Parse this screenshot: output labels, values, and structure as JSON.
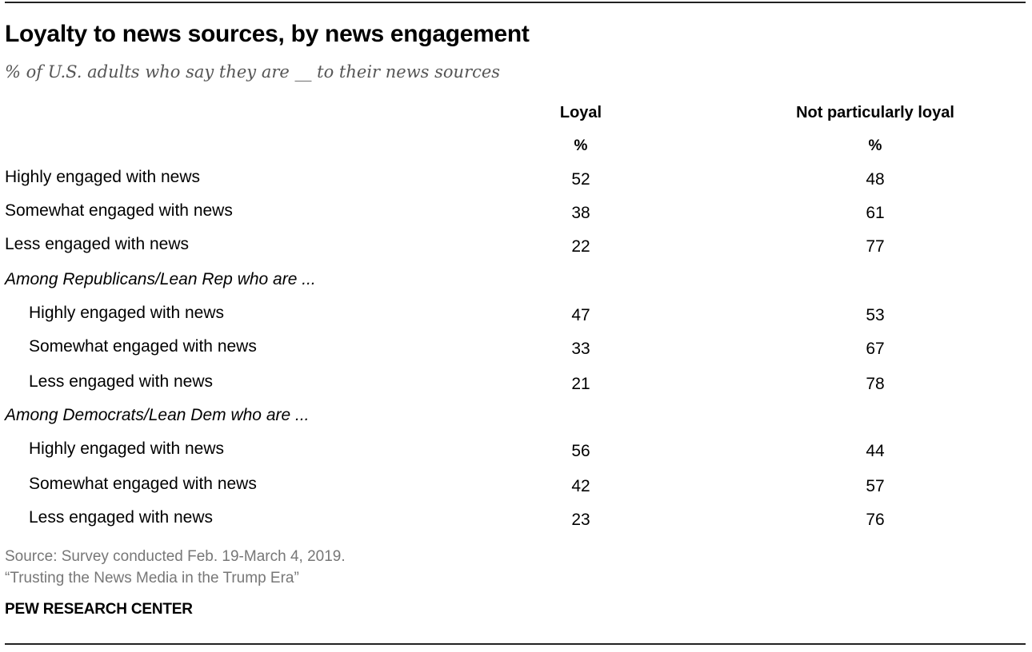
{
  "title": "Loyalty to news sources, by news engagement",
  "subtitle": "% of U.S. adults who say they are __ to their news sources",
  "columns": [
    {
      "label": "Loyal",
      "unit": "%"
    },
    {
      "label": "Not particularly loyal",
      "unit": "%"
    }
  ],
  "chart_data": {
    "type": "table",
    "title": "Loyalty to news sources, by news engagement",
    "subtitle": "% of U.S. adults who say they are __ to their news sources",
    "columns": [
      "Loyal",
      "Not particularly loyal"
    ],
    "rows": [
      {
        "label": "Highly engaged with news",
        "kind": "row",
        "values": [
          "52",
          "48"
        ]
      },
      {
        "label": "Somewhat engaged with news",
        "kind": "row",
        "values": [
          "38",
          "61"
        ]
      },
      {
        "label": "Less engaged with news",
        "kind": "row",
        "values": [
          "22",
          "77"
        ]
      },
      {
        "label": "Among Republicans/Lean Rep who are ...",
        "kind": "group",
        "values": []
      },
      {
        "label": "Highly engaged with news",
        "kind": "sub",
        "values": [
          "47",
          "53"
        ]
      },
      {
        "label": "Somewhat engaged with news",
        "kind": "sub",
        "values": [
          "33",
          "67"
        ]
      },
      {
        "label": "Less engaged with news",
        "kind": "sub",
        "values": [
          "21",
          "78"
        ]
      },
      {
        "label": "Among Democrats/Lean Dem who are ...",
        "kind": "group",
        "values": []
      },
      {
        "label": "Highly engaged with news",
        "kind": "sub",
        "values": [
          "56",
          "44"
        ]
      },
      {
        "label": "Somewhat engaged with news",
        "kind": "sub",
        "values": [
          "42",
          "57"
        ]
      },
      {
        "label": "Less engaged with news",
        "kind": "sub",
        "values": [
          "23",
          "76"
        ]
      }
    ]
  },
  "footer": {
    "source": "Source: Survey conducted Feb. 19-March 4, 2019.",
    "report": "“Trusting the News Media in the Trump Era”",
    "brand": "PEW RESEARCH CENTER"
  }
}
